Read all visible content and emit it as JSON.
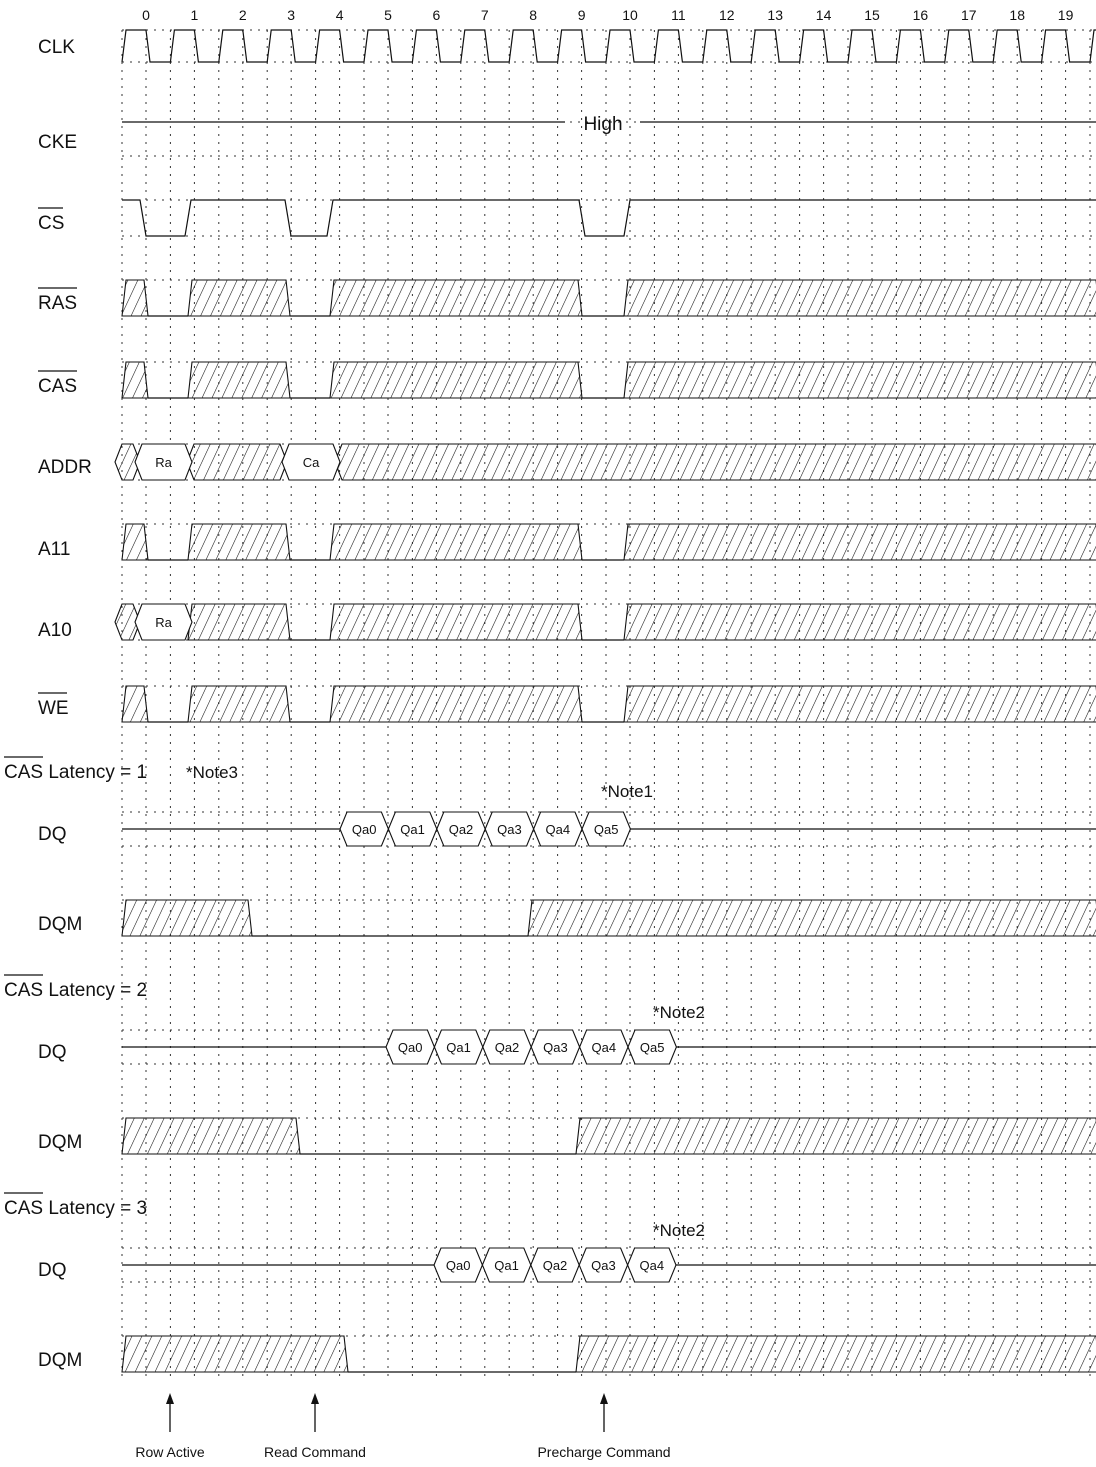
{
  "clock_cycles": [
    "0",
    "1",
    "2",
    "3",
    "4",
    "5",
    "6",
    "7",
    "8",
    "9",
    "10",
    "11",
    "12",
    "13",
    "14",
    "15",
    "16",
    "17",
    "18",
    "19"
  ],
  "signals": {
    "clk": "CLK",
    "cke": "CKE",
    "cs": "CS",
    "ras": "RAS",
    "cas": "CAS",
    "addr": "ADDR",
    "a11": "A11",
    "a10": "A10",
    "we": "WE"
  },
  "cke_level": "High",
  "addr_values": {
    "row": "Ra",
    "col": "Ca"
  },
  "a10_value": "Ra",
  "sections": [
    {
      "title_prefix": "CAS",
      "title_suffix": " Latency = 1",
      "side_note": "*Note3",
      "dq_note": "*Note1",
      "dq_label": "DQ",
      "dqm_label": "DQM",
      "dq_cells": [
        "Qa0",
        "Qa1",
        "Qa2",
        "Qa3",
        "Qa4",
        "Qa5"
      ]
    },
    {
      "title_prefix": "CAS",
      "title_suffix": " Latency = 2",
      "dq_note": "*Note2",
      "dq_label": "DQ",
      "dqm_label": "DQM",
      "dq_cells": [
        "Qa0",
        "Qa1",
        "Qa2",
        "Qa3",
        "Qa4",
        "Qa5"
      ]
    },
    {
      "title_prefix": "CAS",
      "title_suffix": " Latency = 3",
      "dq_note": "*Note2",
      "dq_label": "DQ",
      "dqm_label": "DQM",
      "dq_cells": [
        "Qa0",
        "Qa1",
        "Qa2",
        "Qa3",
        "Qa4"
      ]
    }
  ],
  "commands": [
    "Row Active",
    "Read Command",
    "Precharge Command"
  ]
}
